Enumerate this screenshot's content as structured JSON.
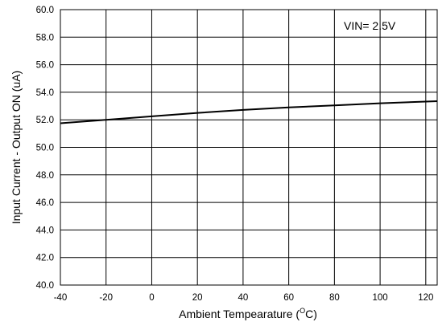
{
  "chart_data": {
    "type": "line",
    "title": "",
    "xlabel": "Ambient Tempearature (",
    "xlabel_sup": "O",
    "xlabel_unit": "C)",
    "ylabel": "Input Current - Output ON (uA)",
    "xlim": [
      -40,
      125
    ],
    "ylim": [
      40,
      60
    ],
    "x_ticks": [
      -40,
      -20,
      0,
      20,
      40,
      60,
      80,
      100,
      120
    ],
    "x_tick_labels": [
      "-40",
      "-20",
      "0",
      "20",
      "40",
      "60",
      "80",
      "100",
      "120"
    ],
    "y_ticks": [
      40,
      42,
      44,
      46,
      48,
      50,
      52,
      54,
      56,
      58,
      60
    ],
    "y_tick_labels": [
      "40.0",
      "42.0",
      "44.0",
      "46.0",
      "48.0",
      "50.0",
      "52.0",
      "54.0",
      "56.0",
      "58.0",
      "60.0"
    ],
    "grid": true,
    "annotation": "VIN= 2.5V",
    "series": [
      {
        "color": "#000000",
        "x": [
          -40,
          -20,
          0,
          20,
          40,
          60,
          80,
          100,
          125
        ],
        "y": [
          51.75,
          52.0,
          52.25,
          52.5,
          52.72,
          52.9,
          53.05,
          53.2,
          53.35
        ]
      }
    ]
  }
}
